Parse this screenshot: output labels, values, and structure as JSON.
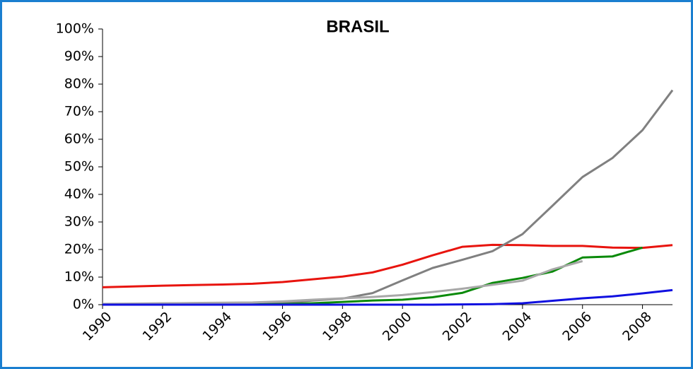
{
  "chart_data": {
    "type": "line",
    "title": "BRASIL",
    "x": [
      1990,
      1991,
      1992,
      1993,
      1994,
      1995,
      1996,
      1997,
      1998,
      1999,
      2000,
      2001,
      2002,
      2003,
      2004,
      2005,
      2006,
      2007,
      2008,
      2009
    ],
    "xlim": [
      1990,
      2009
    ],
    "xticks": [
      1990,
      1992,
      1994,
      1996,
      1998,
      2000,
      2002,
      2004,
      2006,
      2008
    ],
    "ylim": [
      0,
      100
    ],
    "yticks": [
      {
        "value": 0,
        "label": "0%"
      },
      {
        "value": 10,
        "label": "10%"
      },
      {
        "value": 20,
        "label": "20%"
      },
      {
        "value": 30,
        "label": "30%"
      },
      {
        "value": 40,
        "label": "40%"
      },
      {
        "value": 50,
        "label": "50%"
      },
      {
        "value": 60,
        "label": "60%"
      },
      {
        "value": 70,
        "label": "70%"
      },
      {
        "value": 80,
        "label": "80%"
      },
      {
        "value": 90,
        "label": "90%"
      },
      {
        "value": 100,
        "label": "100%"
      }
    ],
    "series": [
      {
        "color": "#e8140e",
        "values": [
          6.3,
          6.6,
          6.9,
          7.1,
          7.3,
          7.6,
          8.2,
          9.2,
          10.2,
          11.7,
          14.5,
          17.9,
          21.0,
          21.7,
          21.6,
          21.3,
          21.3,
          20.7,
          20.6,
          21.6
        ]
      },
      {
        "color": "#808080",
        "values": [
          0,
          0,
          0,
          0,
          0,
          0.1,
          0.5,
          1.5,
          2.2,
          4.2,
          8.8,
          13.3,
          16.3,
          19.4,
          25.6,
          35.9,
          46.3,
          53.2,
          63.3,
          77.8
        ]
      },
      {
        "color": "#0a8a0a",
        "values": [
          0,
          0,
          0,
          0,
          0,
          0.1,
          0.2,
          0.5,
          1.0,
          1.5,
          1.8,
          2.7,
          4.3,
          7.9,
          9.7,
          12.0,
          17.1,
          17.5,
          20.7,
          null
        ]
      },
      {
        "color": "#a8a8a8",
        "values": [
          0.3,
          0.4,
          0.5,
          0.6,
          0.7,
          0.8,
          1.2,
          1.8,
          2.3,
          2.8,
          3.5,
          4.6,
          5.8,
          7.2,
          8.7,
          12.8,
          15.8,
          null,
          null,
          null
        ]
      },
      {
        "color": "#1010e0",
        "values": [
          0,
          0,
          0,
          0,
          0,
          0,
          0,
          0,
          0,
          0,
          0,
          0,
          0.1,
          0.2,
          0.5,
          1.4,
          2.3,
          3.0,
          4.1,
          5.3
        ]
      }
    ]
  }
}
